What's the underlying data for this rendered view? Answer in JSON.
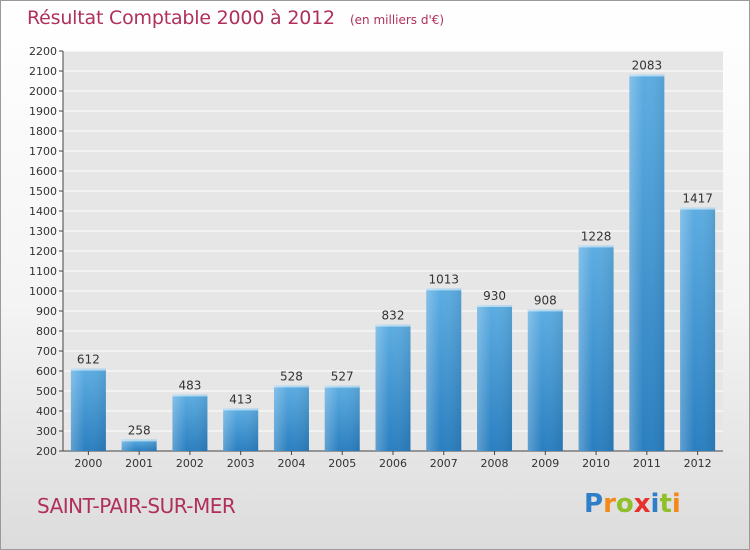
{
  "header": {
    "title": "Résultat Comptable 2000 à 2012",
    "subtitle": "(en milliers d'€)"
  },
  "footer": {
    "commune": "SAINT-PAIR-SUR-MER",
    "brand": "Proxiti"
  },
  "colors": {
    "bar_light": "#5dade2",
    "bar_dark": "#2a7fc0",
    "accent": "#b0305a",
    "grid": "#ffffff",
    "plot_bg": "#e6e6e6"
  },
  "chart_data": {
    "type": "bar",
    "title": "Résultat Comptable 2000 à 2012",
    "subtitle": "(en milliers d'€)",
    "categories": [
      "2000",
      "2001",
      "2002",
      "2003",
      "2004",
      "2005",
      "2006",
      "2007",
      "2008",
      "2009",
      "2010",
      "2011",
      "2012"
    ],
    "values": [
      612,
      258,
      483,
      413,
      528,
      527,
      832,
      1013,
      930,
      908,
      1228,
      2083,
      1417
    ],
    "data_labels": [
      "612",
      "258",
      "483",
      "413",
      "528",
      "527",
      "832",
      "1013",
      "930",
      "908",
      "1228",
      "2083",
      "1417"
    ],
    "ylim": [
      200,
      2200
    ],
    "yticks": [
      200,
      300,
      400,
      500,
      600,
      700,
      800,
      900,
      1000,
      1100,
      1200,
      1300,
      1400,
      1500,
      1600,
      1700,
      1800,
      1900,
      2000,
      2100,
      2200
    ],
    "grid": true,
    "xlabel": "",
    "ylabel": ""
  }
}
